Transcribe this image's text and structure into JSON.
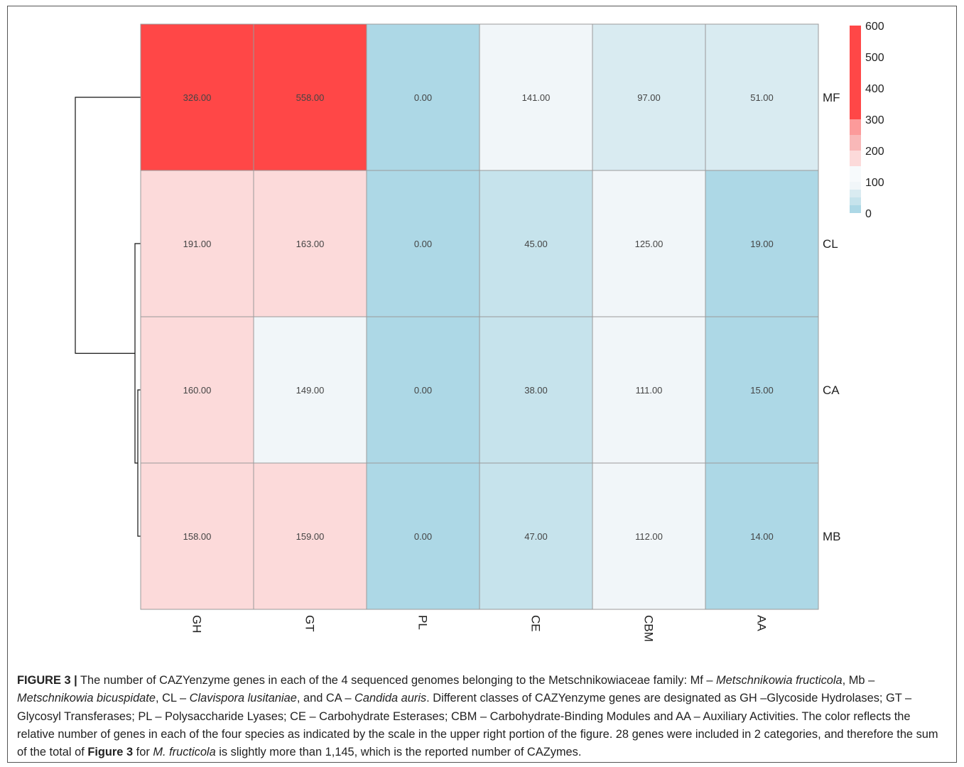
{
  "chart_data": {
    "type": "heatmap",
    "rows": [
      "MF",
      "CL",
      "CA",
      "MB"
    ],
    "columns": [
      "GH",
      "GT",
      "PL",
      "CE",
      "CBM",
      "AA"
    ],
    "values": [
      [
        326.0,
        558.0,
        0.0,
        141.0,
        97.0,
        51.0
      ],
      [
        191.0,
        163.0,
        0.0,
        45.0,
        125.0,
        19.0
      ],
      [
        160.0,
        149.0,
        0.0,
        38.0,
        111.0,
        15.0
      ],
      [
        158.0,
        159.0,
        0.0,
        47.0,
        112.0,
        14.0
      ]
    ],
    "value_labels": [
      [
        "326.00",
        "558.00",
        "0.00",
        "141.00",
        "97.00",
        "51.00"
      ],
      [
        "191.00",
        "163.00",
        "0.00",
        "45.00",
        "125.00",
        "19.00"
      ],
      [
        "160.00",
        "149.00",
        "0.00",
        "38.00",
        "111.00",
        "15.00"
      ],
      [
        "158.00",
        "159.00",
        "0.00",
        "47.00",
        "112.00",
        "14.00"
      ]
    ],
    "legend": {
      "ticks": [
        "600",
        "500",
        "400",
        "300",
        "200",
        "100",
        "0"
      ],
      "range": [
        0,
        600
      ],
      "position": "top-right"
    },
    "colors": {
      "high": "#ff4747",
      "mid_high": "#fc9a9a",
      "low_red": "#fcdada",
      "near_white": "#f1f6f9",
      "low_blue": "#d9ebf1",
      "lowest": "#add8e6",
      "grid": "#9a9a9a"
    },
    "dendrogram": "row clustering: CA and MB join, then CL, then MF"
  },
  "caption": {
    "label": "FIGURE 3 |",
    "s1": " The number of CAZYenzyme genes in each of the 4 sequenced genomes belonging to the Metschnikowiaceae family: Mf – ",
    "i1": "Metschnikowia fructicola",
    "s2": ", Mb – ",
    "i2": "Metschnikowia bicuspidate",
    "s3": ", CL – ",
    "i3": "Clavispora lusitaniae",
    "s4": ", and CA – ",
    "i4": "Candida auris",
    "s5": ". Different classes of CAZYenzyme genes are designated as GH –Glycoside Hydrolases; GT – Glycosyl Transferases; PL – Polysaccharide Lyases; CE – Carbohydrate Esterases; CBM – Carbohydrate-Binding Modules and AA – Auxiliary Activities. The color reflects the relative number of genes in each of the four species as indicated by the scale in the upper right portion of the figure. 28 genes were included in 2 categories, and therefore the sum of the total of ",
    "b1": "Figure 3",
    "s6": " for ",
    "i5": "M. fructicola",
    "s7": " is slightly more than 1,145, which is the reported number of CAZymes."
  }
}
